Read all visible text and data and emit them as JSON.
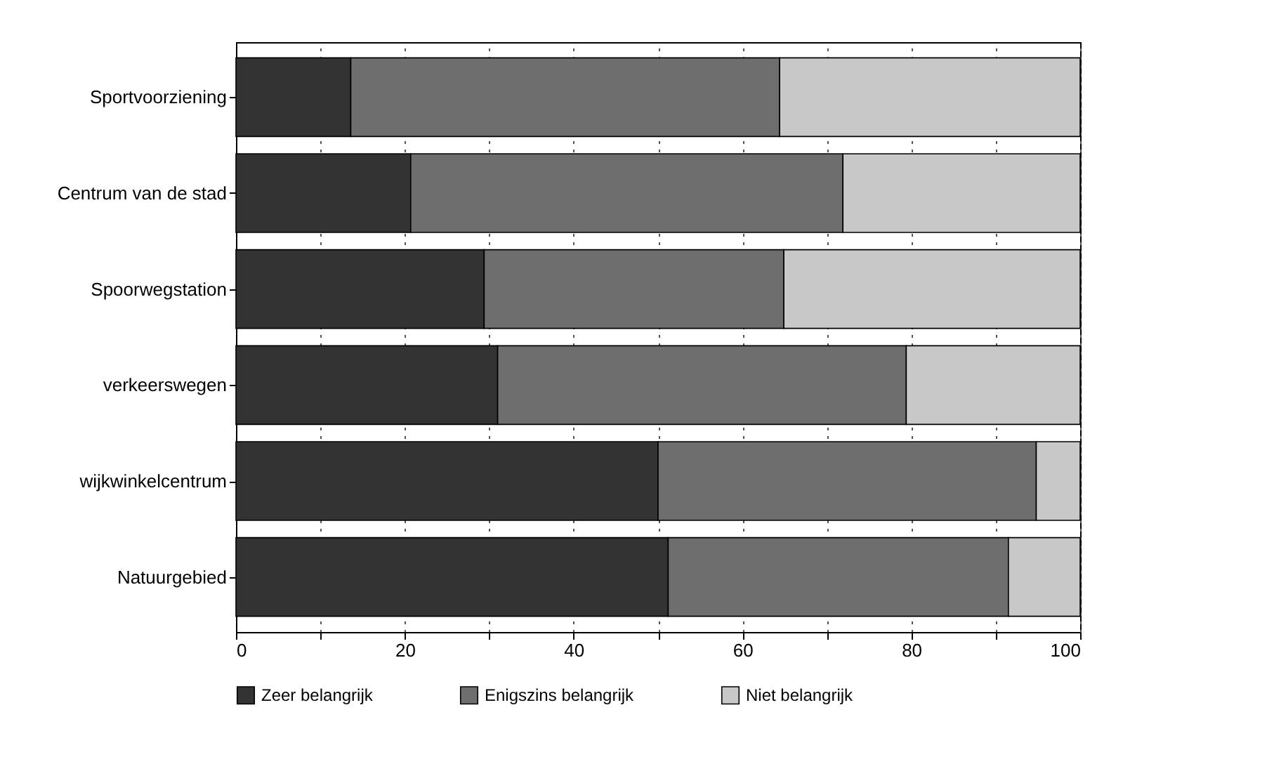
{
  "chart_data": {
    "type": "bar",
    "orientation": "horizontal",
    "stacked": true,
    "categories": [
      "Sportvoorziening",
      "Centrum van de stad",
      "Spoorwegstation",
      "verkeerswegen",
      "wijkwinkelcentrum",
      "Natuurgebied"
    ],
    "series": [
      {
        "name": "Zeer belangrijk",
        "color": "#333333",
        "values": [
          13.6,
          20.7,
          29.4,
          31.0,
          50.0,
          51.2
        ]
      },
      {
        "name": "Enigszins belangrijk",
        "color": "#6e6e6e",
        "values": [
          50.8,
          51.2,
          35.5,
          48.4,
          44.8,
          40.3
        ]
      },
      {
        "name": "Niet belangrijk",
        "color": "#c8c8c8",
        "values": [
          35.6,
          28.1,
          35.1,
          20.6,
          5.2,
          8.5
        ]
      }
    ],
    "xlim": [
      0,
      100
    ],
    "xticks": [
      0,
      {
        "value": 10,
        "label": null
      },
      20,
      {
        "value": 30,
        "label": null
      },
      40,
      {
        "value": 50,
        "label": null
      },
      60,
      {
        "value": 70,
        "label": null
      },
      80,
      {
        "value": 90,
        "label": null
      },
      100
    ],
    "grid": "x",
    "legend": "bottom"
  }
}
